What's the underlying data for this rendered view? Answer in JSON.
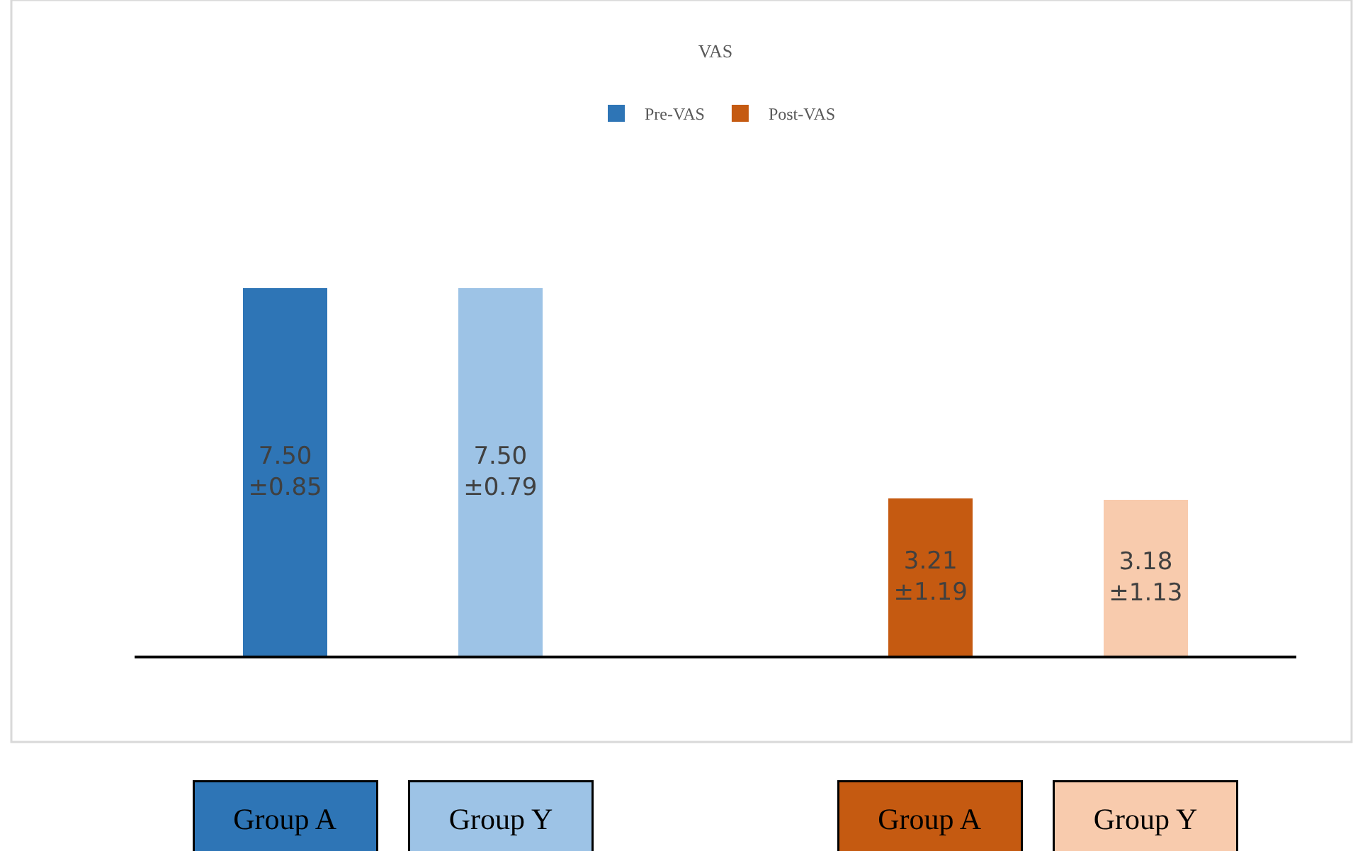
{
  "chart_data": {
    "type": "bar",
    "title": "VAS",
    "categories": [
      "Group A",
      "Group Y",
      null,
      "Group A",
      "Group Y"
    ],
    "series": [
      {
        "name": "Pre-VAS",
        "color": "#2e75b6",
        "colors": [
          "#2e75b6",
          "#9dc3e6",
          null,
          null,
          null
        ],
        "values": [
          7.5,
          7.5,
          null,
          null,
          null
        ],
        "value_labels": [
          "7.50 ±0.85",
          "7.50 ±0.79",
          null,
          null,
          null
        ]
      },
      {
        "name": "Post-VAS",
        "color": "#c55a11",
        "colors": [
          null,
          null,
          null,
          "#c55a11",
          "#f8cbad"
        ],
        "values": [
          null,
          null,
          null,
          3.21,
          3.18
        ],
        "value_labels": [
          null,
          null,
          null,
          "3.21 ±1.19",
          "3.18 ±1.13"
        ]
      }
    ],
    "stacked": true,
    "legend": "top"
  }
}
